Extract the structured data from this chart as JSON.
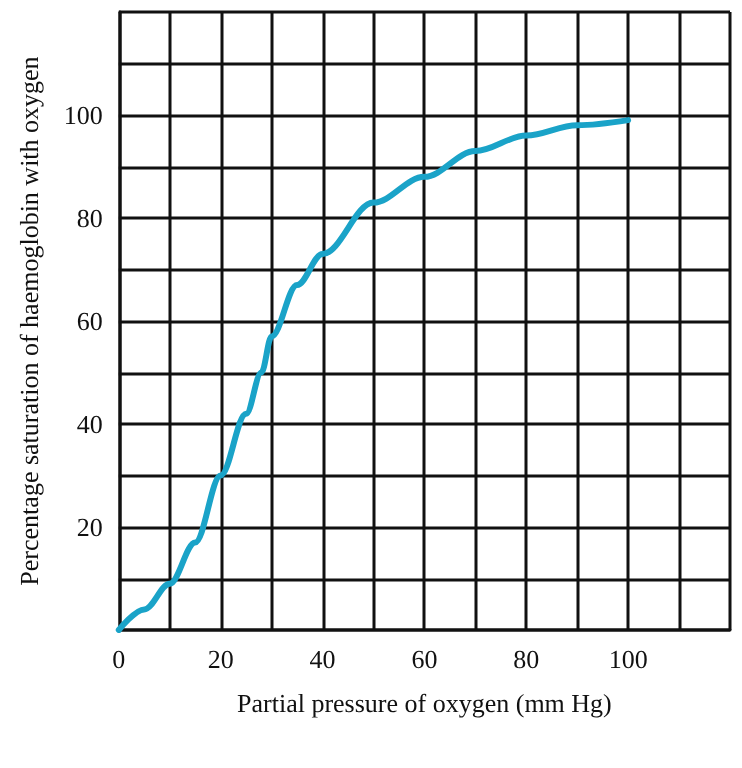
{
  "chart_data": {
    "type": "line",
    "xlabel": "Partial pressure of oxygen (mm Hg)",
    "ylabel": "Percentage saturation of haemoglobin with oxygen",
    "x": [
      0,
      5,
      10,
      15,
      20,
      25,
      28,
      30,
      35,
      40,
      50,
      60,
      70,
      80,
      90,
      100
    ],
    "series": [
      {
        "color": "#1aa3c8",
        "values": [
          0,
          4,
          9,
          17,
          30,
          42,
          50,
          57,
          67,
          73,
          83,
          88,
          93,
          96,
          98,
          99
        ]
      }
    ],
    "xlim": [
      0,
      120
    ],
    "ylim": [
      0,
      120
    ],
    "xticks": [
      0,
      {
        "value": 10,
        "label": null
      },
      20,
      {
        "value": 30,
        "label": null
      },
      40,
      {
        "value": 50,
        "label": null
      },
      60,
      {
        "value": 70,
        "label": null
      },
      80,
      {
        "value": 90,
        "label": null
      },
      100,
      {
        "value": 110,
        "label": null
      },
      {
        "value": 120,
        "label": null
      }
    ],
    "yticks": [
      {
        "value": 0,
        "label": null
      },
      {
        "value": 10,
        "label": null
      },
      20,
      {
        "value": 30,
        "label": null
      },
      40,
      {
        "value": 50,
        "label": null
      },
      60,
      {
        "value": 70,
        "label": null
      },
      80,
      {
        "value": 90,
        "label": null
      },
      100,
      {
        "value": 110,
        "label": null
      },
      {
        "value": 120,
        "label": null
      }
    ],
    "grid": true,
    "marker": "none",
    "line_style": "solid"
  }
}
